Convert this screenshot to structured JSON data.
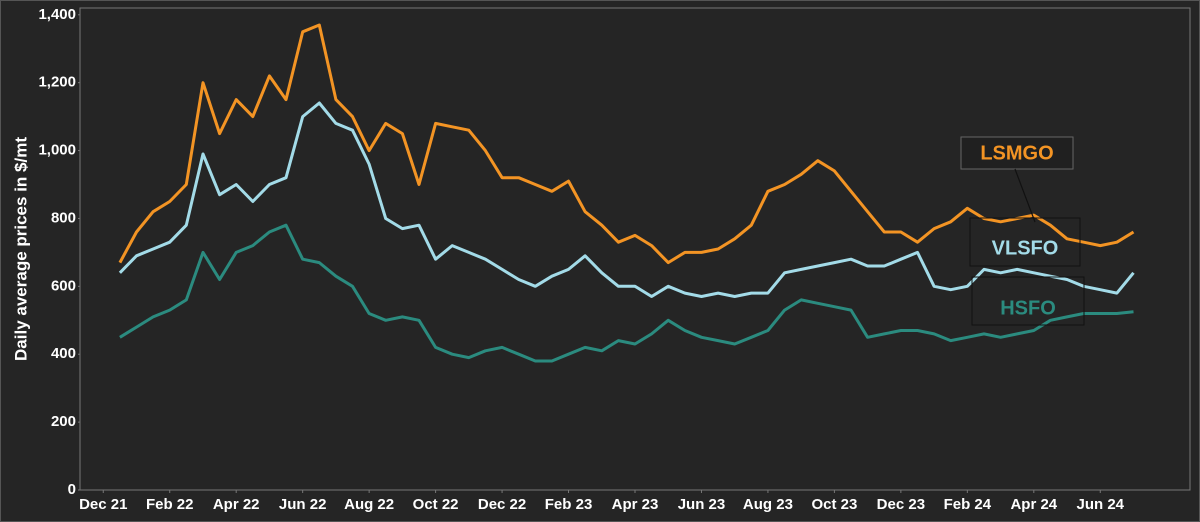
{
  "chart_data": {
    "type": "line",
    "y_label": "Daily average prices in $/mt",
    "x": [
      0.5,
      1,
      1.5,
      2,
      2.5,
      3,
      3.5,
      4,
      4.5,
      5,
      5.5,
      6,
      6.5,
      7,
      7.5,
      8,
      8.5,
      9,
      9.5,
      10,
      10.5,
      11,
      11.5,
      12,
      12.5,
      13,
      13.5,
      14,
      14.5,
      15,
      15.5,
      16,
      16.5,
      17,
      17.5,
      18,
      18.5,
      19,
      19.5,
      20,
      20.5,
      21,
      21.5,
      22,
      22.5,
      23,
      23.5,
      24,
      24.5,
      25,
      25.5,
      26,
      26.5,
      27,
      27.5,
      28,
      28.5,
      29,
      29.5,
      30,
      30.5,
      31
    ],
    "xlim": [
      -0.7,
      32.7
    ],
    "xticks": [
      {
        "value": 0,
        "label": "Dec 21"
      },
      {
        "value": 2,
        "label": "Feb 22"
      },
      {
        "value": 4,
        "label": "Apr 22"
      },
      {
        "value": 6,
        "label": "Jun 22"
      },
      {
        "value": 8,
        "label": "Aug 22"
      },
      {
        "value": 10,
        "label": "Oct 22"
      },
      {
        "value": 12,
        "label": "Dec 22"
      },
      {
        "value": 14,
        "label": "Feb 23"
      },
      {
        "value": 16,
        "label": "Apr 23"
      },
      {
        "value": 18,
        "label": "Jun 23"
      },
      {
        "value": 20,
        "label": "Aug 23"
      },
      {
        "value": 22,
        "label": "Oct 23"
      },
      {
        "value": 24,
        "label": "Dec 23"
      },
      {
        "value": 26,
        "label": "Feb 24"
      },
      {
        "value": 28,
        "label": "Apr 24"
      },
      {
        "value": 30,
        "label": "Jun 24"
      }
    ],
    "ylim": [
      0,
      1420
    ],
    "yticks": [
      0,
      200,
      400,
      600,
      800,
      {
        "value": 1000,
        "label": "1,000"
      },
      {
        "value": 1200,
        "label": "1,200"
      },
      {
        "value": 1400,
        "label": "1,400"
      }
    ],
    "series": [
      {
        "name": "LSMGO",
        "color": "#f39424",
        "values": [
          670,
          760,
          820,
          850,
          900,
          1200,
          1050,
          1150,
          1100,
          1220,
          1150,
          1350,
          1370,
          1150,
          1100,
          1000,
          1080,
          1050,
          900,
          1080,
          1070,
          1060,
          1000,
          920,
          920,
          900,
          880,
          910,
          820,
          780,
          730,
          750,
          720,
          670,
          700,
          700,
          710,
          740,
          780,
          880,
          900,
          930,
          970,
          940,
          880,
          820,
          760,
          760,
          730,
          770,
          790,
          830,
          800,
          790,
          800,
          810,
          780,
          740,
          730,
          720,
          730,
          760
        ]
      },
      {
        "name": "VLSFO",
        "color": "#a3dbe8",
        "values": [
          640,
          690,
          710,
          730,
          780,
          990,
          870,
          900,
          850,
          900,
          920,
          1100,
          1140,
          1080,
          1060,
          960,
          800,
          770,
          780,
          680,
          720,
          700,
          680,
          650,
          620,
          600,
          630,
          650,
          690,
          640,
          600,
          600,
          570,
          600,
          580,
          570,
          580,
          570,
          580,
          580,
          640,
          650,
          660,
          670,
          680,
          660,
          660,
          680,
          700,
          600,
          590,
          600,
          650,
          640,
          650,
          640,
          630,
          620,
          600,
          590,
          580,
          640
        ]
      },
      {
        "name": "HSFO",
        "color": "#2b8b7f",
        "values": [
          450,
          480,
          510,
          530,
          560,
          700,
          620,
          700,
          720,
          760,
          780,
          680,
          670,
          630,
          600,
          520,
          500,
          510,
          500,
          420,
          400,
          390,
          410,
          420,
          400,
          380,
          380,
          400,
          420,
          410,
          440,
          430,
          460,
          500,
          470,
          450,
          440,
          430,
          450,
          470,
          530,
          560,
          550,
          540,
          530,
          450,
          460,
          470,
          470,
          460,
          440,
          450,
          460,
          450,
          460,
          470,
          500,
          510,
          520,
          520,
          520,
          525
        ]
      }
    ]
  }
}
